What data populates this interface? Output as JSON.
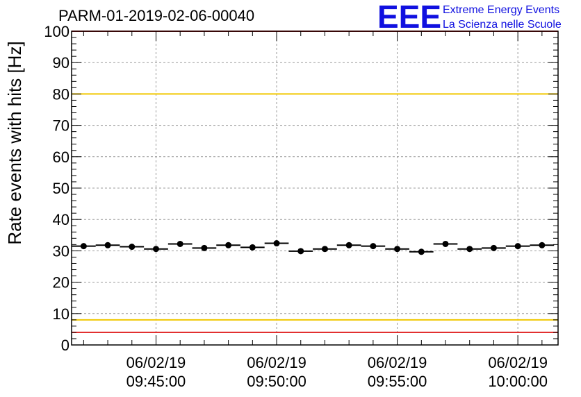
{
  "chart_data": {
    "type": "scatter",
    "title": "PARM-01-2019-02-06-00040",
    "ylabel": "Rate events with hits [Hz]",
    "xlabel": "",
    "ylim": [
      0,
      100
    ],
    "yticks": [
      0,
      10,
      20,
      30,
      40,
      50,
      60,
      70,
      80,
      90,
      100
    ],
    "xlim": [
      "2019-02-06 09:41:30",
      "2019-02-06 10:01:40"
    ],
    "xticks": [
      {
        "time": "09:45:00",
        "date": "06/02/19",
        "minutes": 3.5
      },
      {
        "time": "09:50:00",
        "date": "06/02/19",
        "minutes": 8.5
      },
      {
        "time": "09:55:00",
        "date": "06/02/19",
        "minutes": 13.5
      },
      {
        "time": "10:00:00",
        "date": "06/02/19",
        "minutes": 18.5
      }
    ],
    "grid": true,
    "reference_lines": [
      {
        "y": 100,
        "color": "#e02020"
      },
      {
        "y": 80,
        "color": "#f0c800"
      },
      {
        "y": 8,
        "color": "#f0c800"
      },
      {
        "y": 4,
        "color": "#e02020"
      }
    ],
    "points": [
      {
        "x": "09:42:00",
        "y": 31.5
      },
      {
        "x": "09:43:00",
        "y": 31.8
      },
      {
        "x": "09:44:00",
        "y": 31.3
      },
      {
        "x": "09:45:00",
        "y": 30.6
      },
      {
        "x": "09:46:00",
        "y": 32.2
      },
      {
        "x": "09:47:00",
        "y": 30.9
      },
      {
        "x": "09:48:00",
        "y": 31.8
      },
      {
        "x": "09:49:00",
        "y": 31.1
      },
      {
        "x": "09:50:00",
        "y": 32.4
      },
      {
        "x": "09:51:00",
        "y": 29.9
      },
      {
        "x": "09:52:00",
        "y": 30.6
      },
      {
        "x": "09:53:00",
        "y": 31.8
      },
      {
        "x": "09:54:00",
        "y": 31.5
      },
      {
        "x": "09:55:00",
        "y": 30.6
      },
      {
        "x": "09:56:00",
        "y": 29.7
      },
      {
        "x": "09:57:00",
        "y": 32.2
      },
      {
        "x": "09:58:00",
        "y": 30.6
      },
      {
        "x": "09:59:00",
        "y": 30.9
      },
      {
        "x": "10:00:00",
        "y": 31.5
      },
      {
        "x": "10:01:00",
        "y": 31.8
      }
    ],
    "marker_color": "#000000"
  },
  "logo": {
    "letters": "EEE",
    "line1": "Extreme Energy Events",
    "line2": "La Scienza nelle Scuole",
    "color": "#1010e0"
  }
}
